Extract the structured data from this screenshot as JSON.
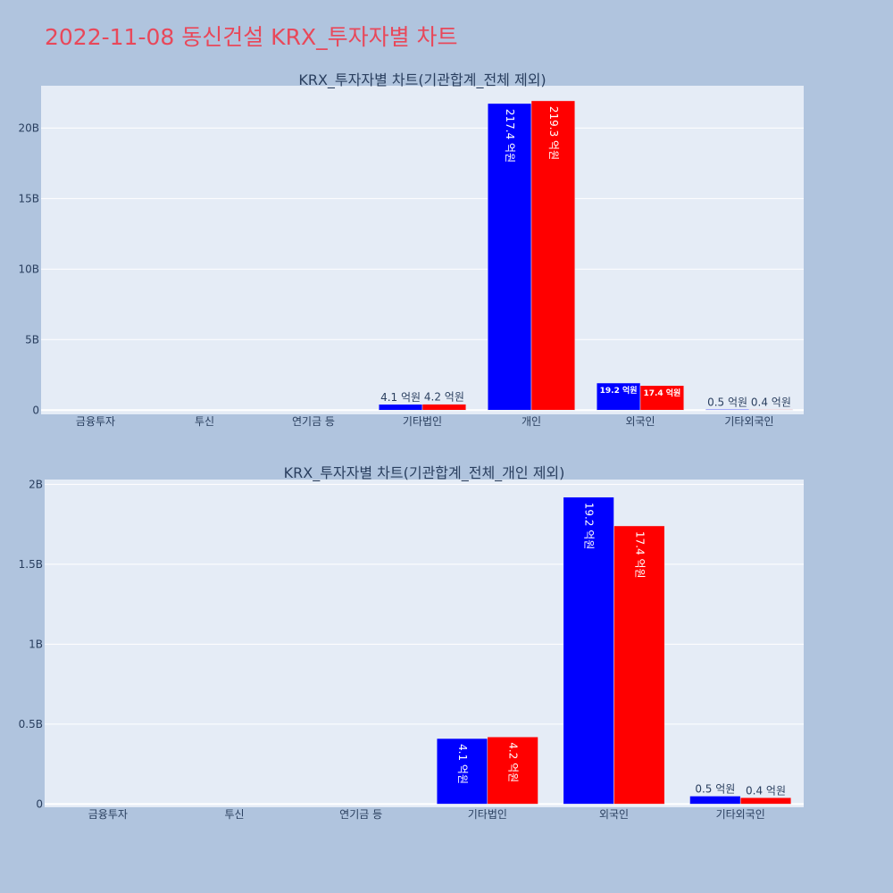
{
  "title": "2022-11-08 동신건설 KRX_투자자별 차트",
  "colors": {
    "buy": "#0000ff",
    "sell": "#ff0000",
    "plot_bg": "#e5ecf6",
    "page_bg": "#b0c4de",
    "title": "#e8485a"
  },
  "chart_data": [
    {
      "type": "bar",
      "title": "KRX_투자자별 차트(기관합계_전체 제외)",
      "categories": [
        "금융투자",
        "투신",
        "연기금 등",
        "기타법인",
        "개인",
        "외국인",
        "기타외국인"
      ],
      "series": [
        {
          "values": [
            0,
            0,
            0,
            410000000,
            21740000000,
            1920000000,
            50000000
          ],
          "labels": [
            "",
            "",
            "",
            "4.1 억원",
            "217.4 억원",
            "19.2 억원",
            "0.5 억원"
          ]
        },
        {
          "values": [
            0,
            0,
            0,
            420000000,
            21930000000,
            1740000000,
            40000000
          ],
          "labels": [
            "",
            "",
            "",
            "4.2 억원",
            "219.3 억원",
            "17.4 억원",
            "0.4 억원"
          ]
        }
      ],
      "ylim": [
        -300000000,
        23000000000
      ],
      "yticks": [
        0,
        5000000000,
        10000000000,
        15000000000,
        20000000000
      ],
      "yticklabels": [
        "0",
        "5B",
        "10B",
        "15B",
        "20B"
      ],
      "grid": true
    },
    {
      "type": "bar",
      "title": "KRX_투자자별 차트(기관합계_전체_개인 제외)",
      "categories": [
        "금융투자",
        "투신",
        "연기금 등",
        "기타법인",
        "외국인",
        "기타외국인"
      ],
      "series": [
        {
          "values": [
            0,
            0,
            0,
            410000000,
            1920000000,
            50000000
          ],
          "labels": [
            "",
            "",
            "",
            "4.1 억원",
            "19.2 억원",
            "0.5 억원"
          ]
        },
        {
          "values": [
            0,
            0,
            0,
            420000000,
            1740000000,
            40000000
          ],
          "labels": [
            "",
            "",
            "",
            "4.2 억원",
            "17.4 억원",
            "0.4 억원"
          ]
        }
      ],
      "ylim": [
        -20000000,
        2030000000
      ],
      "yticks": [
        0,
        500000000,
        1000000000,
        1500000000,
        2000000000
      ],
      "yticklabels": [
        "0",
        "0.5B",
        "1B",
        "1.5B",
        "2B"
      ],
      "grid": true
    }
  ]
}
